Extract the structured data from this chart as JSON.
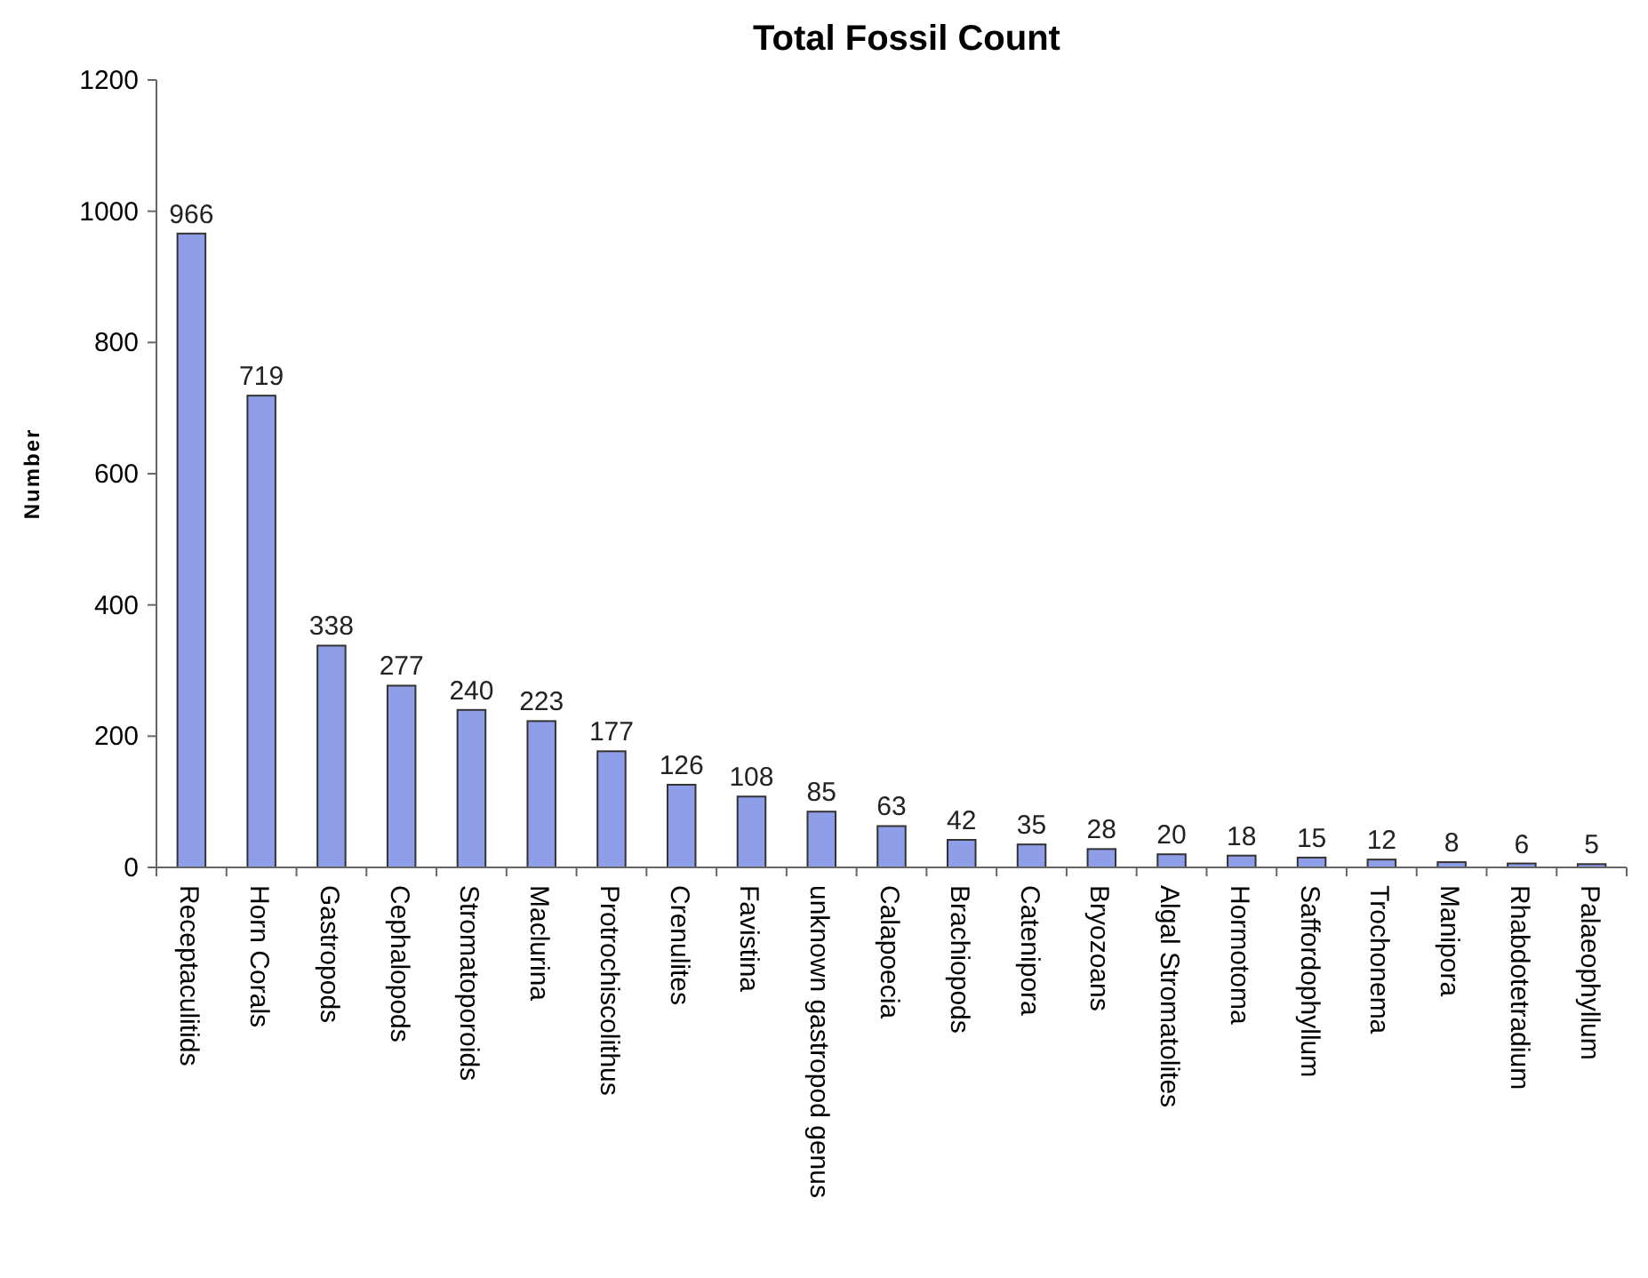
{
  "chart_data": {
    "type": "bar",
    "title": "Total Fossil Count",
    "ylabel": "Number",
    "categories": [
      "Receptaculitids",
      "Horn Corals",
      "Gastropods",
      "Cephalopods",
      "Stromatoporoids",
      "Maclurina",
      "Protrochiscolithus",
      "Crenulites",
      "Favistina",
      "unknown gastropod genus",
      "Calapoecia",
      "Brachiopods",
      "Catenipora",
      "Bryozoans",
      "Algal Stromatolites",
      "Hormotoma",
      "Saffordophyllum",
      "Trochonema",
      "Manipora",
      "Rhabdotetradium",
      "Palaeophyllum"
    ],
    "values": [
      966,
      719,
      338,
      277,
      240,
      223,
      177,
      126,
      108,
      85,
      63,
      42,
      35,
      28,
      20,
      18,
      15,
      12,
      8,
      6,
      5
    ],
    "color": "#8e9ee8",
    "ylim": [
      0,
      1200
    ],
    "yticks": [
      0,
      200,
      400,
      600,
      800,
      1000,
      1200
    ],
    "grid": false,
    "data_labels": true
  }
}
